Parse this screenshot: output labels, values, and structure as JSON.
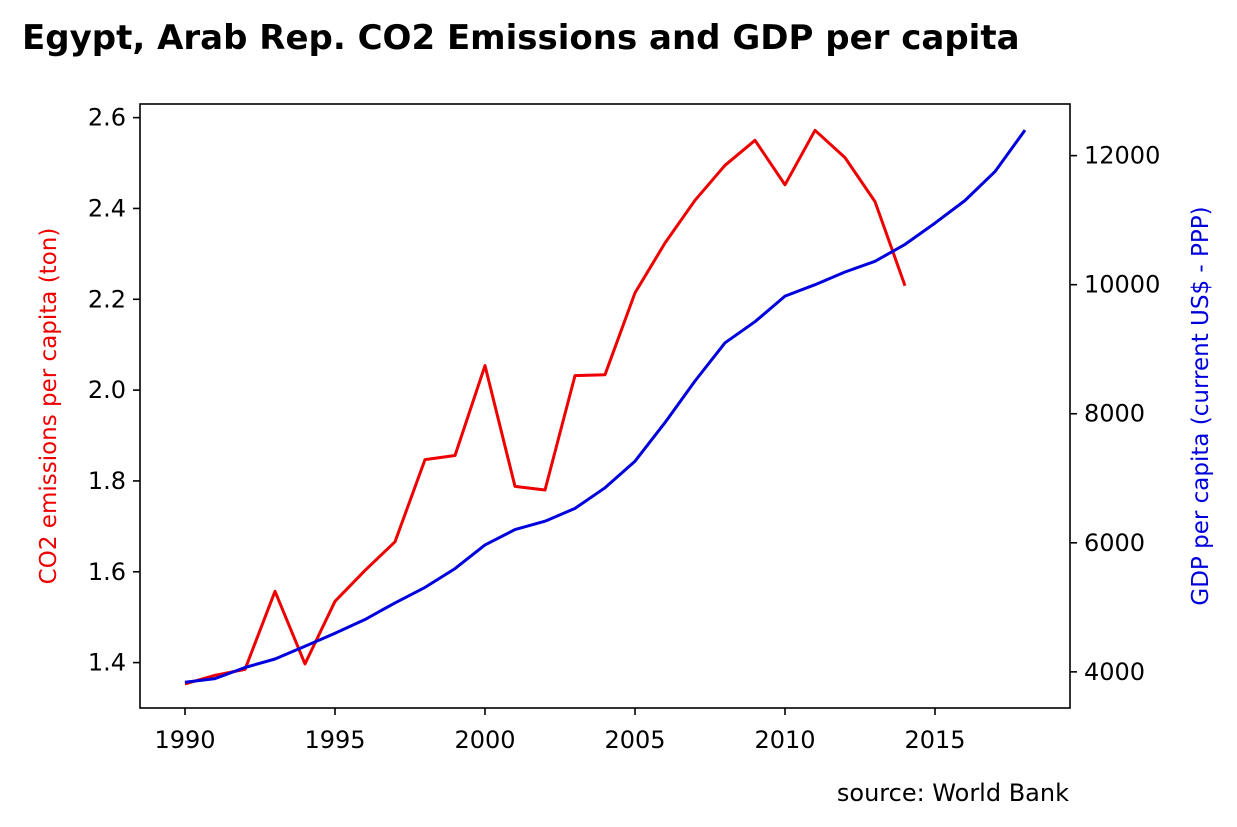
{
  "chart_data": {
    "type": "line",
    "title": "Egypt, Arab Rep. CO2 Emissions and GDP per capita",
    "source": "source: World Bank",
    "x_axis": {
      "range": [
        1988.5,
        2019.5
      ],
      "ticks": [
        1990,
        1995,
        2000,
        2005,
        2010,
        2015
      ],
      "tick_labels": [
        "1990",
        "1995",
        "2000",
        "2005",
        "2010",
        "2015"
      ]
    },
    "left_axis": {
      "label": "CO2 emissions per capita (ton)",
      "color": "#ee0000",
      "range": [
        1.3,
        2.63
      ],
      "ticks": [
        1.4,
        1.6,
        1.8,
        2.0,
        2.2,
        2.4,
        2.6
      ],
      "tick_labels": [
        "1.4",
        "1.6",
        "1.8",
        "2.0",
        "2.2",
        "2.4",
        "2.6"
      ]
    },
    "right_axis": {
      "label": "GDP per capita (current US$ - PPP)",
      "color": "#0000dd",
      "range": [
        3440,
        12800
      ],
      "ticks": [
        4000,
        6000,
        8000,
        10000,
        12000
      ],
      "tick_labels": [
        "4000",
        "6000",
        "8000",
        "10000",
        "12000"
      ]
    },
    "series": [
      {
        "axis": "left",
        "color": "#ee0000",
        "x": [
          1990,
          1991,
          1992,
          1993,
          1994,
          1995,
          1996,
          1997,
          1998,
          1999,
          2000,
          2001,
          2002,
          2003,
          2004,
          2005,
          2006,
          2007,
          2008,
          2009,
          2010,
          2011,
          2012,
          2013,
          2014
        ],
        "values": [
          1.353,
          1.372,
          1.385,
          1.557,
          1.397,
          1.535,
          1.603,
          1.666,
          1.847,
          1.856,
          2.054,
          1.788,
          1.78,
          2.032,
          2.034,
          2.214,
          2.324,
          2.418,
          2.495,
          2.55,
          2.452,
          2.572,
          2.512,
          2.415,
          2.23
        ]
      },
      {
        "axis": "right",
        "color": "#0000dd",
        "x": [
          1990,
          1991,
          1992,
          1993,
          1994,
          1995,
          1996,
          1997,
          1998,
          1999,
          2000,
          2001,
          2002,
          2003,
          2004,
          2005,
          2006,
          2007,
          2008,
          2009,
          2010,
          2011,
          2012,
          2013,
          2014,
          2015,
          2016,
          2017,
          2018
        ],
        "values": [
          3838,
          3896,
          4067,
          4200,
          4397,
          4597,
          4811,
          5069,
          5309,
          5601,
          5968,
          6204,
          6335,
          6533,
          6852,
          7264,
          7862,
          8507,
          9100,
          9426,
          9823,
          10000,
          10196,
          10363,
          10624,
          10955,
          11305,
          11752,
          12395
        ]
      }
    ]
  }
}
